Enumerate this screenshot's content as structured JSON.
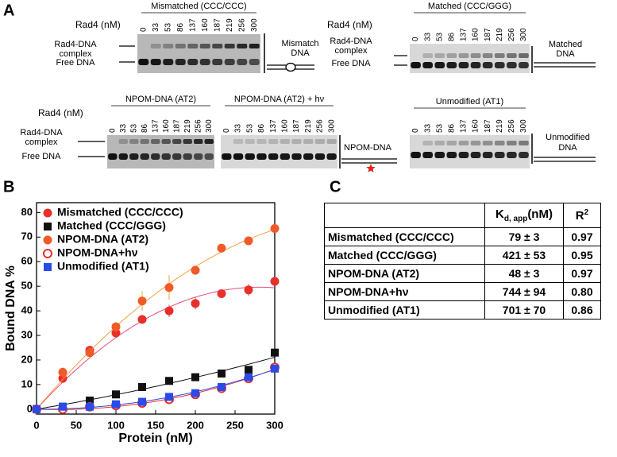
{
  "panel_a": {
    "label": "A",
    "groups": [
      {
        "rad4_label": "Rad4 (nM)",
        "complex_label": [
          "Rad4-DNA",
          "complex"
        ],
        "free_label": "Free DNA",
        "gels": [
          {
            "title": "Mismatched (CCC/CCC)",
            "concentrations": [
              0,
              33,
              53,
              86,
              137,
              160,
              187,
              219,
              256,
              300
            ]
          }
        ],
        "diagram_label": [
          "Mismatch",
          "DNA"
        ]
      },
      {
        "rad4_label": "Rad4 (nM)",
        "complex_label": [
          "Rad4-DNA",
          "complex"
        ],
        "free_label": "Free DNA",
        "gels": [
          {
            "title": "Matched (CCC/GGG)",
            "concentrations": [
              0,
              33,
              53,
              86,
              137,
              160,
              187,
              219,
              256,
              300
            ]
          }
        ],
        "diagram_label": [
          "Matched",
          "DNA"
        ]
      },
      {
        "rad4_label": "Rad4 (nM)",
        "complex_label": [
          "Rad4-DNA",
          "complex"
        ],
        "free_label": "Free DNA",
        "gels": [
          {
            "title": "NPOM-DNA (AT2)",
            "concentrations": [
              0,
              33,
              53,
              86,
              137,
              160,
              187,
              219,
              256,
              300
            ]
          },
          {
            "title": "NPOM-DNA (AT2) + hν",
            "concentrations": [
              0,
              33,
              53,
              86,
              137,
              160,
              187,
              219,
              256,
              300
            ]
          }
        ],
        "diagram_label": [
          "NPOM-DNA"
        ]
      },
      {
        "gels": [
          {
            "title": "Unmodified (AT1)",
            "concentrations": [
              0,
              33,
              53,
              86,
              137,
              160,
              187,
              219,
              256,
              300
            ]
          }
        ],
        "diagram_label": [
          "Unmodified",
          "DNA"
        ]
      }
    ]
  },
  "chart_data": {
    "type": "scatter",
    "label": "B",
    "x_label": "Protein (nM)",
    "y_label": "Bound DNA %",
    "x": [
      0,
      33,
      67,
      100,
      133,
      167,
      200,
      233,
      267,
      300
    ],
    "xlim": [
      0,
      300
    ],
    "xticks": [
      0,
      50,
      100,
      150,
      200,
      250,
      300
    ],
    "ylim": [
      -2,
      84
    ],
    "yticks": [
      0,
      10,
      20,
      30,
      40,
      50,
      60,
      70,
      80
    ],
    "fit": true,
    "series": [
      {
        "name": "Mismatched (CCC/CCC)",
        "color": "#e8302a",
        "fit_color": "#e0507a",
        "marker": "circle",
        "values": [
          0,
          12.5,
          24,
          31,
          36.5,
          40,
          43,
          47,
          48.5,
          52
        ],
        "errors": [
          0,
          1,
          1.5,
          1,
          1,
          2.5,
          2.5,
          1,
          2.5,
          1
        ]
      },
      {
        "name": "Matched (CCC/GGG)",
        "color": "#111111",
        "fit_color": "#111111",
        "marker": "square",
        "values": [
          0,
          1,
          3.5,
          6,
          9,
          11.5,
          13,
          14.5,
          16,
          23
        ]
      },
      {
        "name": "NPOM-DNA (AT2)",
        "color": "#f05a28",
        "fit_color": "#f4a040",
        "marker": "circle",
        "values": [
          0,
          15,
          23,
          33.5,
          44,
          49.5,
          56.5,
          65.5,
          68.5,
          73.5
        ],
        "errors": [
          0,
          2,
          2,
          2,
          4,
          5,
          1,
          1,
          1,
          1
        ]
      },
      {
        "name": "NPOM-DNA+hν",
        "color": "#e8302a",
        "fit_color": "#e8302a",
        "marker": "open-circle",
        "values": [
          0,
          0,
          1,
          1.5,
          2.5,
          4,
          6,
          8.5,
          12.5,
          17
        ]
      },
      {
        "name": "Unmodified (AT1)",
        "color": "#2a4be8",
        "fit_color": "#2a4be8",
        "marker": "square",
        "values": [
          0,
          1,
          1,
          2,
          3,
          5,
          6.5,
          9,
          13,
          16.5
        ]
      }
    ]
  },
  "panel_c": {
    "label": "C",
    "table": {
      "header": [
        "",
        {
          "main": "K",
          "sub": "d, app",
          "rest": "(nM)"
        },
        {
          "main": "R",
          "sup": "2"
        }
      ],
      "rows": [
        [
          "Mismatched (CCC/CCC)",
          "79 ± 3",
          "0.97"
        ],
        [
          "Matched (CCC/GGG)",
          "421 ± 53",
          "0.95"
        ],
        [
          "NPOM-DNA (AT2)",
          "48 ± 3",
          "0.97"
        ],
        [
          "NPOM-DNA+hν",
          "744 ± 94",
          "0.80"
        ],
        [
          "Unmodified (AT1)",
          "701 ± 70",
          "0.86"
        ]
      ]
    }
  }
}
